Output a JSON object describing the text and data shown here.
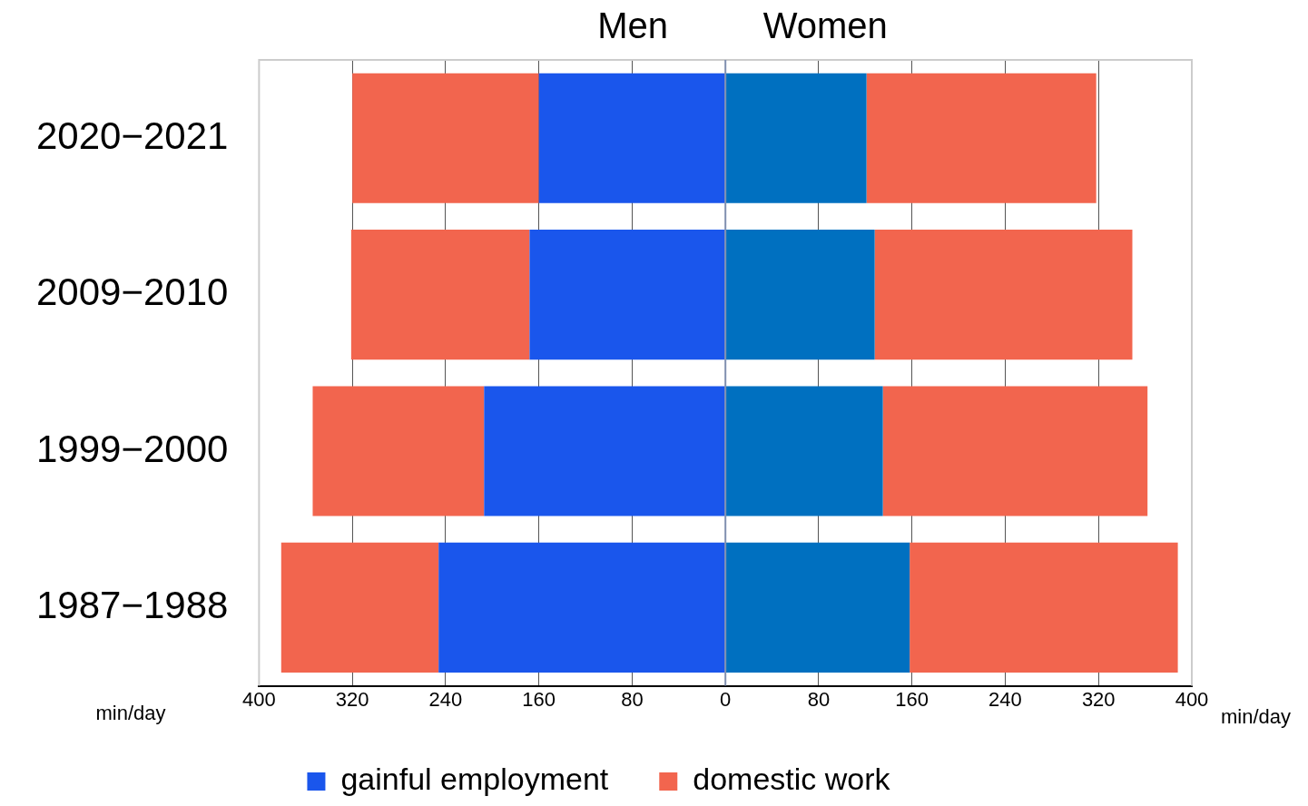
{
  "chart_data": {
    "type": "bar",
    "orientation": "horizontal",
    "stacked": true,
    "categories": [
      "2020−2021",
      "2009−2010",
      "1999−2000",
      "1987−1988"
    ],
    "series": [
      {
        "name": "gainful employment",
        "color": "#1a56ec",
        "values": [
          -160,
          -168,
          -207,
          -246
        ]
      },
      {
        "name": "domestic work",
        "color": "#f2654e",
        "values": [
          -160,
          -153,
          -147,
          -135
        ]
      },
      {
        "color": "#0070c0",
        "values": [
          121,
          128,
          135,
          158
        ]
      },
      {
        "color": "#f2654e",
        "values": [
          197,
          221,
          227,
          230
        ]
      }
    ],
    "xlabel": "min/day",
    "xlim": [
      -400,
      400
    ],
    "xticks": [
      {
        "value": -400,
        "label": "400"
      },
      {
        "value": -320,
        "label": "320"
      },
      {
        "value": -240,
        "label": "240"
      },
      {
        "value": -160,
        "label": "160"
      },
      {
        "value": -80,
        "label": "80"
      },
      0,
      80,
      160,
      240,
      320,
      400
    ],
    "ref_lines": [
      {
        "axis": "x",
        "value": 0,
        "color": "#8090b0"
      }
    ],
    "annotations": [
      "Men",
      "Women",
      "min/day"
    ],
    "grid": "x",
    "legend": "bottom"
  }
}
